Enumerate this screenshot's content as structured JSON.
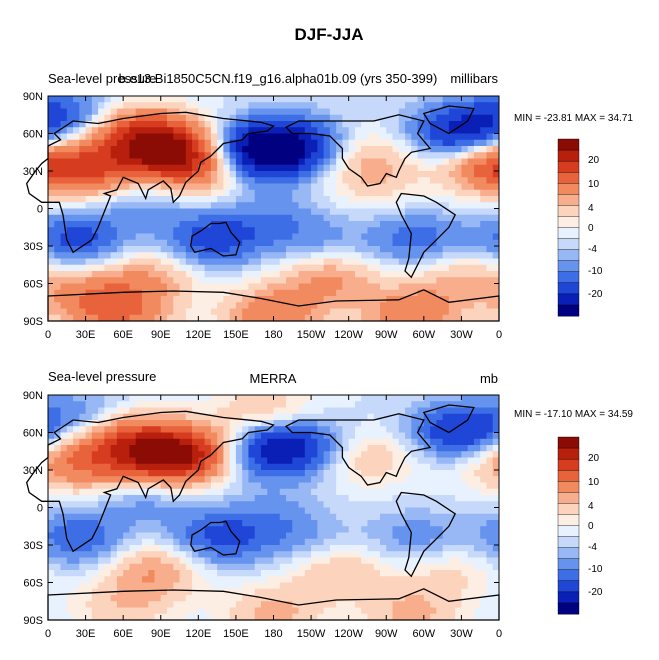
{
  "figure_title": "DJF-JJA",
  "chart_data": [
    {
      "type": "heatmap",
      "title_left": "Sea-level pressure",
      "title_center": "b.e13.Bi1850C5CN.f19_g16.alpha01b.09 (yrs 350-399)",
      "title_right": "millibars",
      "min_max_text": "MIN = -23.81 MAX =  34.71",
      "x_ticks": [
        "0",
        "30E",
        "60E",
        "90E",
        "120E",
        "150E",
        "180",
        "150W",
        "120W",
        "90W",
        "60W",
        "30W",
        "0"
      ],
      "y_ticks": [
        "90N",
        "60N",
        "30N",
        "0",
        "30S",
        "60S",
        "90S"
      ],
      "colorbar_levels": [
        "20",
        "10",
        "4",
        "0",
        "-4",
        "-10",
        "-20"
      ],
      "xlim": [
        0,
        360
      ],
      "ylim": [
        -90,
        90
      ],
      "grid": false,
      "field_blobs": [
        {
          "lon": 100,
          "lat": 45,
          "v": 26
        },
        {
          "lon": 70,
          "lat": 60,
          "v": 18
        },
        {
          "lon": 40,
          "lat": 30,
          "v": 14
        },
        {
          "lon": 120,
          "lat": 30,
          "v": 10
        },
        {
          "lon": 5,
          "lat": 35,
          "v": 8
        },
        {
          "lon": 350,
          "lat": 35,
          "v": 12
        },
        {
          "lon": 255,
          "lat": 40,
          "v": 7
        },
        {
          "lon": 260,
          "lat": 20,
          "v": 4
        },
        {
          "lon": 165,
          "lat": 45,
          "v": -20
        },
        {
          "lon": 195,
          "lat": 50,
          "v": -17
        },
        {
          "lon": 330,
          "lat": 60,
          "v": -18
        },
        {
          "lon": 15,
          "lat": 75,
          "v": -10
        },
        {
          "lon": 75,
          "lat": 10,
          "v": -6
        },
        {
          "lon": 130,
          "lat": -25,
          "v": -12
        },
        {
          "lon": 25,
          "lat": -25,
          "v": -12
        },
        {
          "lon": 295,
          "lat": -25,
          "v": -9
        },
        {
          "lon": 220,
          "lat": -30,
          "v": -5
        },
        {
          "lon": 80,
          "lat": -55,
          "v": 9
        },
        {
          "lon": 225,
          "lat": -55,
          "v": 11
        },
        {
          "lon": 330,
          "lat": -55,
          "v": 7
        },
        {
          "lon": 180,
          "lat": -85,
          "v": 14
        },
        {
          "lon": 60,
          "lat": -85,
          "v": 12
        },
        {
          "lon": 290,
          "lat": -85,
          "v": 14
        },
        {
          "lon": 180,
          "lat": -10,
          "v": -6
        },
        {
          "lon": 30,
          "lat": -70,
          "v": 10
        }
      ]
    },
    {
      "type": "heatmap",
      "title_left": "Sea-level pressure",
      "title_center": "MERRA",
      "title_right": "mb",
      "min_max_text": "MIN = -17.10 MAX =  34.59",
      "x_ticks": [
        "0",
        "30E",
        "60E",
        "90E",
        "120E",
        "150E",
        "180",
        "150W",
        "120W",
        "90W",
        "60W",
        "30W",
        "0"
      ],
      "y_ticks": [
        "90N",
        "60N",
        "30N",
        "0",
        "30S",
        "60S",
        "90S"
      ],
      "colorbar_levels": [
        "20",
        "10",
        "4",
        "0",
        "-4",
        "-10",
        "-20"
      ],
      "xlim": [
        0,
        360
      ],
      "ylim": [
        -90,
        90
      ],
      "grid": false,
      "field_blobs": [
        {
          "lon": 95,
          "lat": 40,
          "v": 26
        },
        {
          "lon": 60,
          "lat": 55,
          "v": 16
        },
        {
          "lon": 30,
          "lat": 35,
          "v": 12
        },
        {
          "lon": 125,
          "lat": 45,
          "v": 12
        },
        {
          "lon": 175,
          "lat": 75,
          "v": 8
        },
        {
          "lon": 255,
          "lat": 40,
          "v": 7
        },
        {
          "lon": 355,
          "lat": 40,
          "v": 5
        },
        {
          "lon": 170,
          "lat": 45,
          "v": -14
        },
        {
          "lon": 200,
          "lat": 50,
          "v": -12
        },
        {
          "lon": 330,
          "lat": 60,
          "v": -16
        },
        {
          "lon": 30,
          "lat": 70,
          "v": -8
        },
        {
          "lon": 80,
          "lat": 10,
          "v": -6
        },
        {
          "lon": 135,
          "lat": -25,
          "v": -11
        },
        {
          "lon": 25,
          "lat": -25,
          "v": -10
        },
        {
          "lon": 295,
          "lat": -25,
          "v": -6
        },
        {
          "lon": 210,
          "lat": -30,
          "v": -4
        },
        {
          "lon": 85,
          "lat": -50,
          "v": 10
        },
        {
          "lon": 230,
          "lat": -50,
          "v": 8
        },
        {
          "lon": 320,
          "lat": -50,
          "v": 5
        },
        {
          "lon": 180,
          "lat": -85,
          "v": 8
        },
        {
          "lon": 60,
          "lat": -80,
          "v": 6
        },
        {
          "lon": 290,
          "lat": -85,
          "v": 8
        },
        {
          "lon": 180,
          "lat": -10,
          "v": -5
        }
      ]
    }
  ],
  "palette": [
    "#000080",
    "#0a1fb5",
    "#1f46d6",
    "#3d6ee6",
    "#6693ee",
    "#97b8f5",
    "#c6d9fb",
    "#e8f1fe",
    "#fdeee4",
    "#fcd3bd",
    "#f8ae8c",
    "#f28a60",
    "#e8623b",
    "#d63d20",
    "#b81f0d",
    "#8a0c05"
  ],
  "land_color": "#000000"
}
